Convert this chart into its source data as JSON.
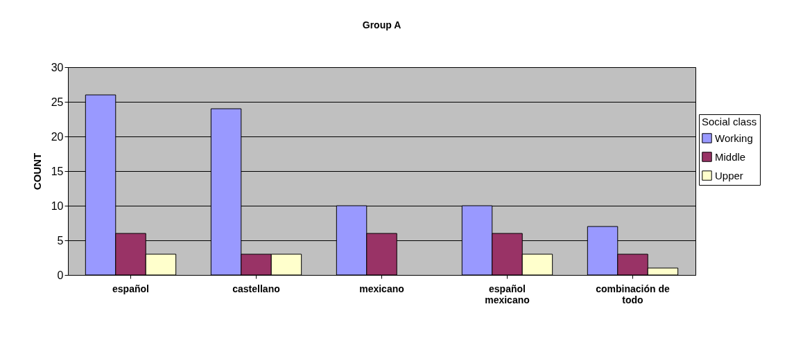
{
  "chart_data": {
    "type": "bar",
    "title": "Group A",
    "ylabel": "COUNT",
    "legend_title": "Social class",
    "categories": [
      "español",
      "castellano",
      "mexicano",
      "español mexicano",
      "combinación de todo"
    ],
    "series": [
      {
        "name": "Working",
        "color": "#9999ff",
        "values": [
          26,
          24,
          10,
          10,
          7
        ]
      },
      {
        "name": "Middle",
        "color": "#993366",
        "values": [
          6,
          3,
          6,
          6,
          3
        ]
      },
      {
        "name": "Upper",
        "color": "#ffffcc",
        "values": [
          3,
          3,
          null,
          3,
          1
        ]
      }
    ],
    "ylim": [
      0,
      30
    ],
    "yticks": [
      0,
      5,
      10,
      15,
      20,
      25,
      30
    ],
    "grid": "y",
    "legend": "right"
  }
}
